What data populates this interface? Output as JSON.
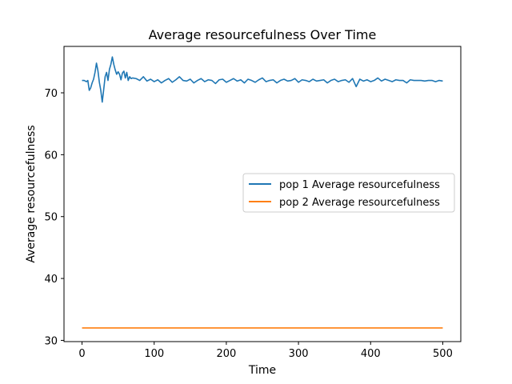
{
  "chart_data": {
    "type": "line",
    "title": "Average resourcefulness Over Time",
    "xlabel": "Time",
    "ylabel": "Average resourcefulness",
    "xlim": [
      -25,
      525
    ],
    "ylim": [
      29.8,
      77.5
    ],
    "xticks": [
      0,
      100,
      200,
      300,
      400,
      500
    ],
    "yticks": [
      30,
      40,
      50,
      60,
      70
    ],
    "grid": false,
    "legend_position": "center-right",
    "series": [
      {
        "name": "pop 1 Average resourcefulness",
        "color": "#1f77b4",
        "x": [
          0,
          3,
          6,
          8,
          10,
          12,
          14,
          16,
          18,
          20,
          22,
          24,
          26,
          28,
          30,
          32,
          34,
          36,
          38,
          40,
          42,
          44,
          46,
          48,
          50,
          52,
          54,
          56,
          58,
          60,
          62,
          64,
          66,
          68,
          70,
          75,
          80,
          85,
          90,
          95,
          100,
          105,
          110,
          115,
          120,
          125,
          130,
          135,
          140,
          145,
          150,
          155,
          160,
          165,
          170,
          175,
          180,
          185,
          190,
          195,
          200,
          205,
          210,
          215,
          220,
          225,
          230,
          235,
          240,
          245,
          250,
          255,
          260,
          265,
          270,
          275,
          280,
          285,
          290,
          295,
          300,
          305,
          310,
          315,
          320,
          325,
          330,
          335,
          340,
          345,
          350,
          355,
          360,
          365,
          370,
          375,
          380,
          385,
          390,
          395,
          400,
          405,
          410,
          415,
          420,
          425,
          430,
          435,
          440,
          445,
          450,
          455,
          460,
          465,
          470,
          475,
          480,
          485,
          490,
          495,
          500
        ],
        "values": [
          72.0,
          72.0,
          71.8,
          72.0,
          70.4,
          70.8,
          71.6,
          72.2,
          73.3,
          74.8,
          73.6,
          71.7,
          70.4,
          68.5,
          70.5,
          72.6,
          73.3,
          72.0,
          73.8,
          74.6,
          75.8,
          74.6,
          73.7,
          73.0,
          73.4,
          73.0,
          72.1,
          73.2,
          73.5,
          72.4,
          73.3,
          72.0,
          72.6,
          72.3,
          72.4,
          72.3,
          72.0,
          72.6,
          71.9,
          72.2,
          71.8,
          72.1,
          71.6,
          72.0,
          72.3,
          71.7,
          72.1,
          72.6,
          72.0,
          71.9,
          72.2,
          71.6,
          72.0,
          72.3,
          71.8,
          72.1,
          72.0,
          71.5,
          72.1,
          72.2,
          71.7,
          72.0,
          72.3,
          71.9,
          72.1,
          71.6,
          72.2,
          72.0,
          71.7,
          72.1,
          72.4,
          71.8,
          72.0,
          72.1,
          71.6,
          72.0,
          72.2,
          71.9,
          72.0,
          72.3,
          71.7,
          72.1,
          72.0,
          71.8,
          72.2,
          71.9,
          72.0,
          72.1,
          71.6,
          72.0,
          72.2,
          71.8,
          72.0,
          72.1,
          71.7,
          72.3,
          71.0,
          72.2,
          71.9,
          72.1,
          71.8,
          72.0,
          72.4,
          71.9,
          72.2,
          72.0,
          71.8,
          72.1,
          72.0,
          72.0,
          71.6,
          72.1,
          72.0,
          72.0,
          72.0,
          71.9,
          72.0,
          72.0,
          71.8,
          72.0,
          71.9
        ]
      },
      {
        "name": "pop 2 Average resourcefulness",
        "color": "#ff7f0e",
        "x": [
          0,
          500
        ],
        "values": [
          32.0,
          32.0
        ]
      }
    ]
  }
}
